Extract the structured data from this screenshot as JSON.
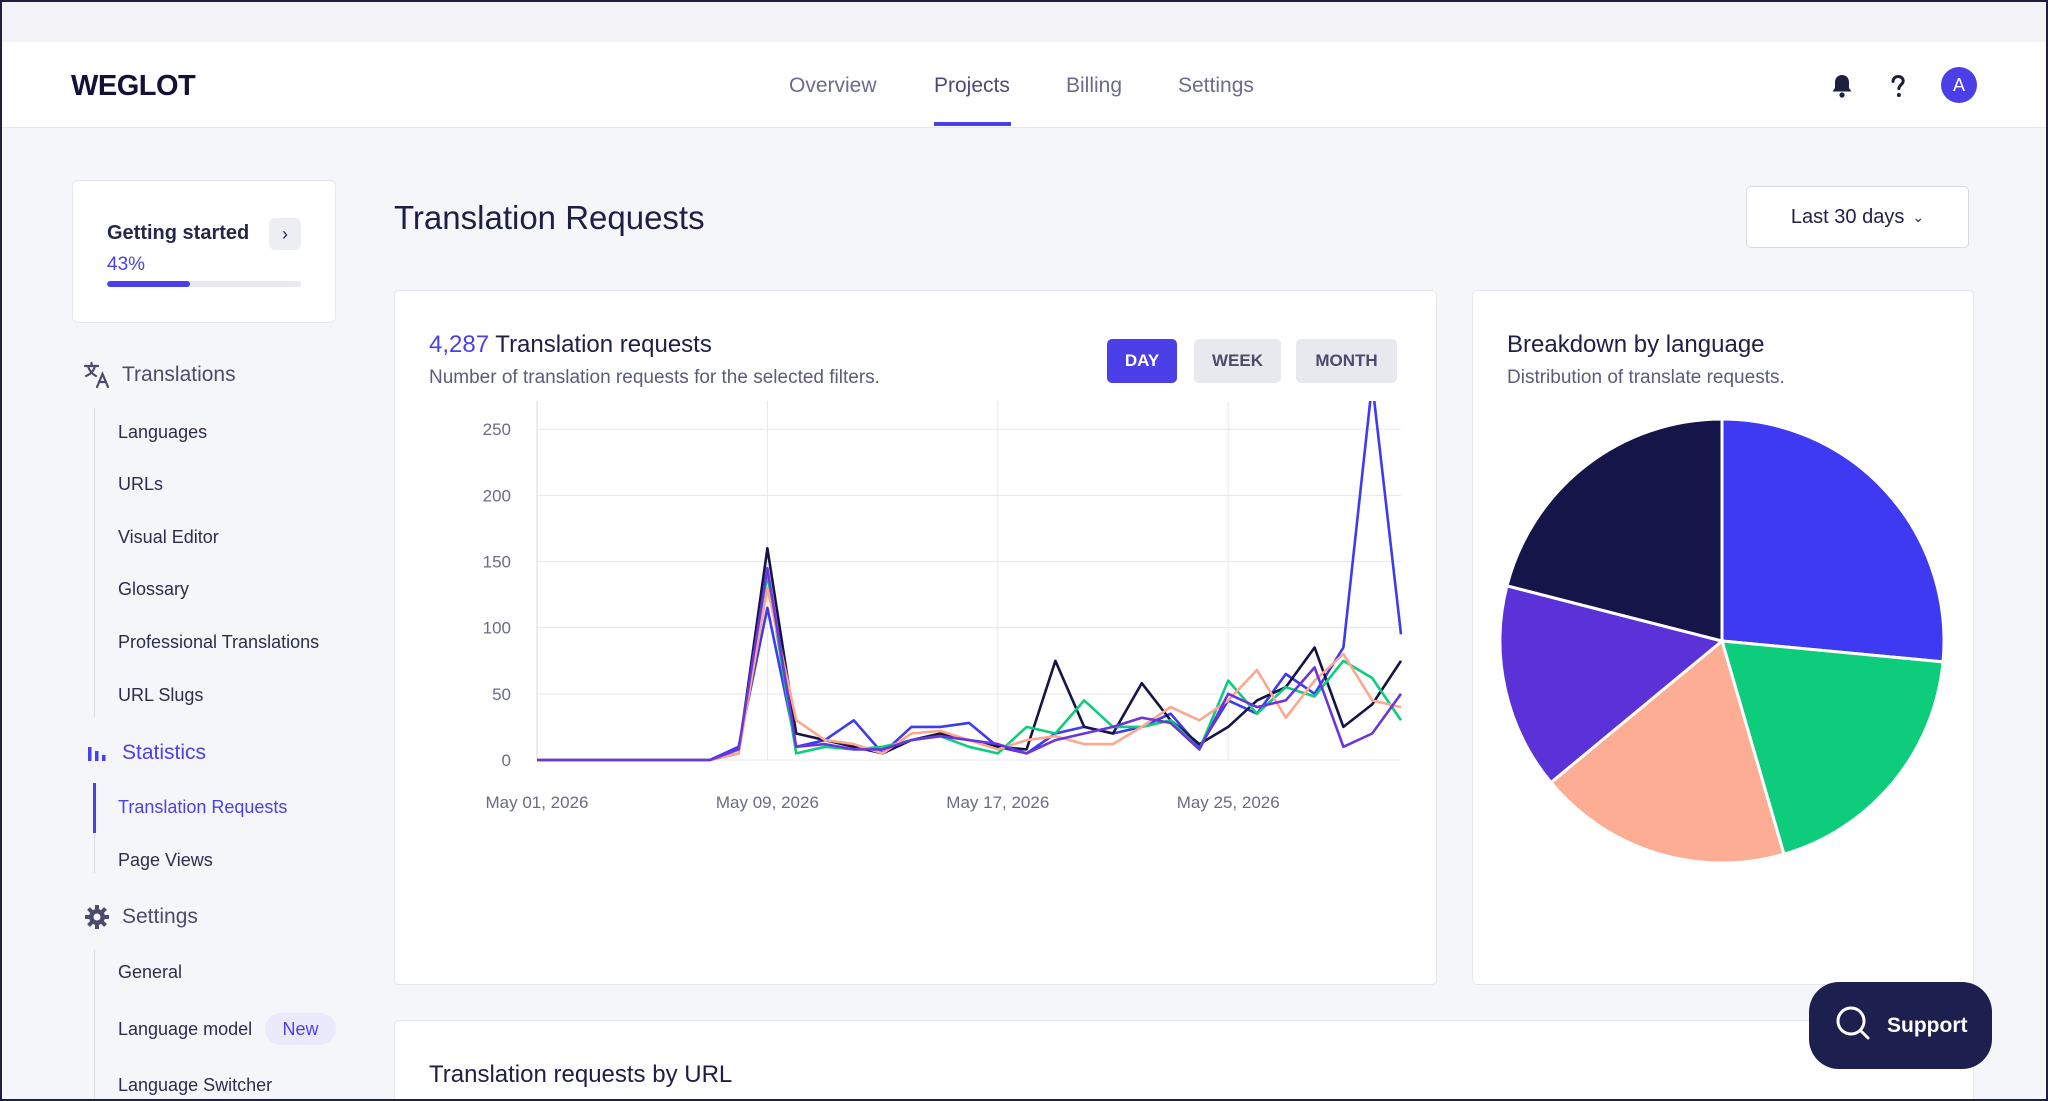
{
  "window": {
    "traffic_lights": [
      "#ff5f57",
      "#febc2e",
      "#28c840"
    ]
  },
  "brand": {
    "logo": "WEGLOT"
  },
  "nav": {
    "tabs": [
      {
        "label": "Overview"
      },
      {
        "label": "Projects",
        "active": true
      },
      {
        "label": "Billing"
      },
      {
        "label": "Settings"
      }
    ],
    "avatar_initial": "A",
    "icons": [
      "bell-icon",
      "help-icon"
    ]
  },
  "getting_started": {
    "title": "Getting started",
    "percent_label": "43%",
    "progress": 0.43
  },
  "sidebar": {
    "translations": {
      "label": "Translations",
      "items": [
        "Languages",
        "URLs",
        "Visual Editor",
        "Glossary",
        "Professional Translations",
        "URL Slugs"
      ]
    },
    "statistics": {
      "label": "Statistics",
      "items": [
        "Translation Requests",
        "Page Views"
      ],
      "active_item": "Translation Requests"
    },
    "settings": {
      "label": "Settings",
      "items": [
        "General",
        "Language model",
        "Language Switcher"
      ],
      "badge": "New"
    }
  },
  "page": {
    "title": "Translation Requests",
    "date_range": "Last 30 days"
  },
  "requests_card": {
    "count": "4,287",
    "title": "Translation requests",
    "subtitle": "Number of translation requests for the selected filters.",
    "periods": [
      "DAY",
      "WEEK",
      "MONTH"
    ],
    "active_period": "DAY"
  },
  "pie_card": {
    "title": "Breakdown by language",
    "subtitle": "Distribution of translate requests."
  },
  "url_card": {
    "title": "Translation requests by URL"
  },
  "support": {
    "label": "Support"
  },
  "chart_data": [
    {
      "type": "line",
      "x": [
        "May 01, 2026",
        "May 02, 2026",
        "May 03, 2026",
        "May 04, 2026",
        "May 05, 2026",
        "May 06, 2026",
        "May 07, 2026",
        "May 08, 2026",
        "May 09, 2026",
        "May 10, 2026",
        "May 11, 2026",
        "May 12, 2026",
        "May 13, 2026",
        "May 14, 2026",
        "May 15, 2026",
        "May 16, 2026",
        "May 17, 2026",
        "May 18, 2026",
        "May 19, 2026",
        "May 20, 2026",
        "May 21, 2026",
        "May 22, 2026",
        "May 23, 2026",
        "May 24, 2026",
        "May 25, 2026",
        "May 26, 2026",
        "May 27, 2026",
        "May 28, 2026",
        "May 29, 2026",
        "May 30, 2026",
        "May 31, 2026"
      ],
      "xticks": [
        "May 01, 2026",
        "May 09, 2026",
        "May 17, 2026",
        "May 25, 2026"
      ],
      "ylim": [
        0,
        300
      ],
      "yticks": [
        0,
        50,
        100,
        150,
        200,
        250,
        300
      ],
      "grid": true,
      "series": [
        {
          "color": "#3d3af2",
          "values": [
            0,
            0,
            0,
            0,
            0,
            0,
            0,
            10,
            115,
            10,
            15,
            30,
            5,
            25,
            25,
            28,
            10,
            5,
            20,
            25,
            20,
            25,
            35,
            10,
            45,
            35,
            65,
            50,
            85,
            285,
            95
          ]
        },
        {
          "color": "#141447",
          "values": [
            0,
            0,
            0,
            0,
            0,
            0,
            0,
            5,
            160,
            20,
            15,
            10,
            5,
            15,
            20,
            15,
            10,
            8,
            75,
            25,
            20,
            58,
            30,
            12,
            25,
            45,
            55,
            85,
            25,
            42,
            75
          ]
        },
        {
          "color": "#0dcd7c",
          "values": [
            0,
            0,
            0,
            0,
            0,
            0,
            0,
            5,
            140,
            5,
            10,
            8,
            10,
            15,
            18,
            10,
            5,
            25,
            20,
            45,
            25,
            25,
            30,
            8,
            60,
            35,
            55,
            48,
            75,
            62,
            30
          ]
        },
        {
          "color": "#fda78e",
          "values": [
            0,
            0,
            0,
            0,
            0,
            0,
            0,
            5,
            130,
            30,
            15,
            12,
            5,
            20,
            22,
            15,
            8,
            15,
            18,
            12,
            12,
            25,
            40,
            30,
            45,
            68,
            32,
            60,
            80,
            45,
            40
          ]
        },
        {
          "color": "#6a35dc",
          "values": [
            0,
            0,
            0,
            0,
            0,
            0,
            0,
            8,
            145,
            10,
            12,
            8,
            8,
            15,
            18,
            15,
            12,
            5,
            15,
            20,
            25,
            32,
            28,
            8,
            50,
            40,
            45,
            70,
            10,
            20,
            50
          ]
        }
      ]
    },
    {
      "type": "pie",
      "slices": [
        {
          "value": 26.5,
          "color": "#3d3af2"
        },
        {
          "value": 19.0,
          "color": "#0dcd7c"
        },
        {
          "value": 18.5,
          "color": "#fdad94"
        },
        {
          "value": 15.0,
          "color": "#5b32d8"
        },
        {
          "value": 21.0,
          "color": "#15154a"
        }
      ]
    }
  ]
}
